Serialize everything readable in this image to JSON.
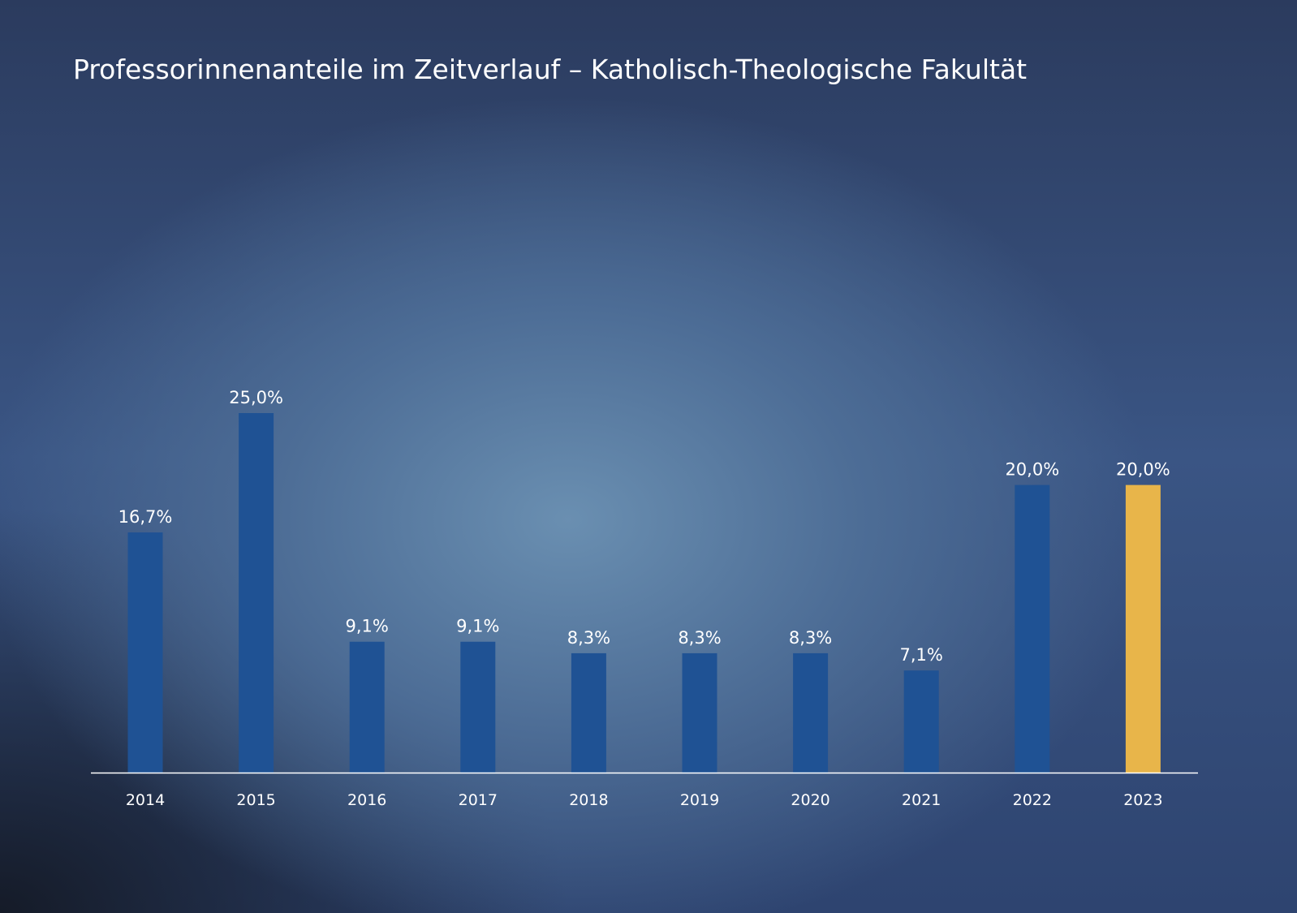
{
  "chart_data": {
    "type": "bar",
    "title": "Professorinnenanteile im Zeitverlauf – Katholisch-Theologische Fakultät",
    "xlabel": "",
    "ylabel": "",
    "ylim": [
      0,
      25
    ],
    "grid": false,
    "categories": [
      "2014",
      "2015",
      "2016",
      "2017",
      "2018",
      "2019",
      "2020",
      "2021",
      "2022",
      "2023"
    ],
    "values": [
      16.7,
      25.0,
      9.1,
      9.1,
      8.3,
      8.3,
      8.3,
      7.1,
      20.0,
      20.0
    ],
    "data_labels": [
      "16,7%",
      "25,0%",
      "9,1%",
      "9,1%",
      "8,3%",
      "8,3%",
      "8,3%",
      "7,1%",
      "20,0%",
      "20,0%"
    ],
    "colors": {
      "default": "#1f5294",
      "highlight": "#e8b54a",
      "axis": "#ffffff"
    },
    "highlight_index": 9
  }
}
